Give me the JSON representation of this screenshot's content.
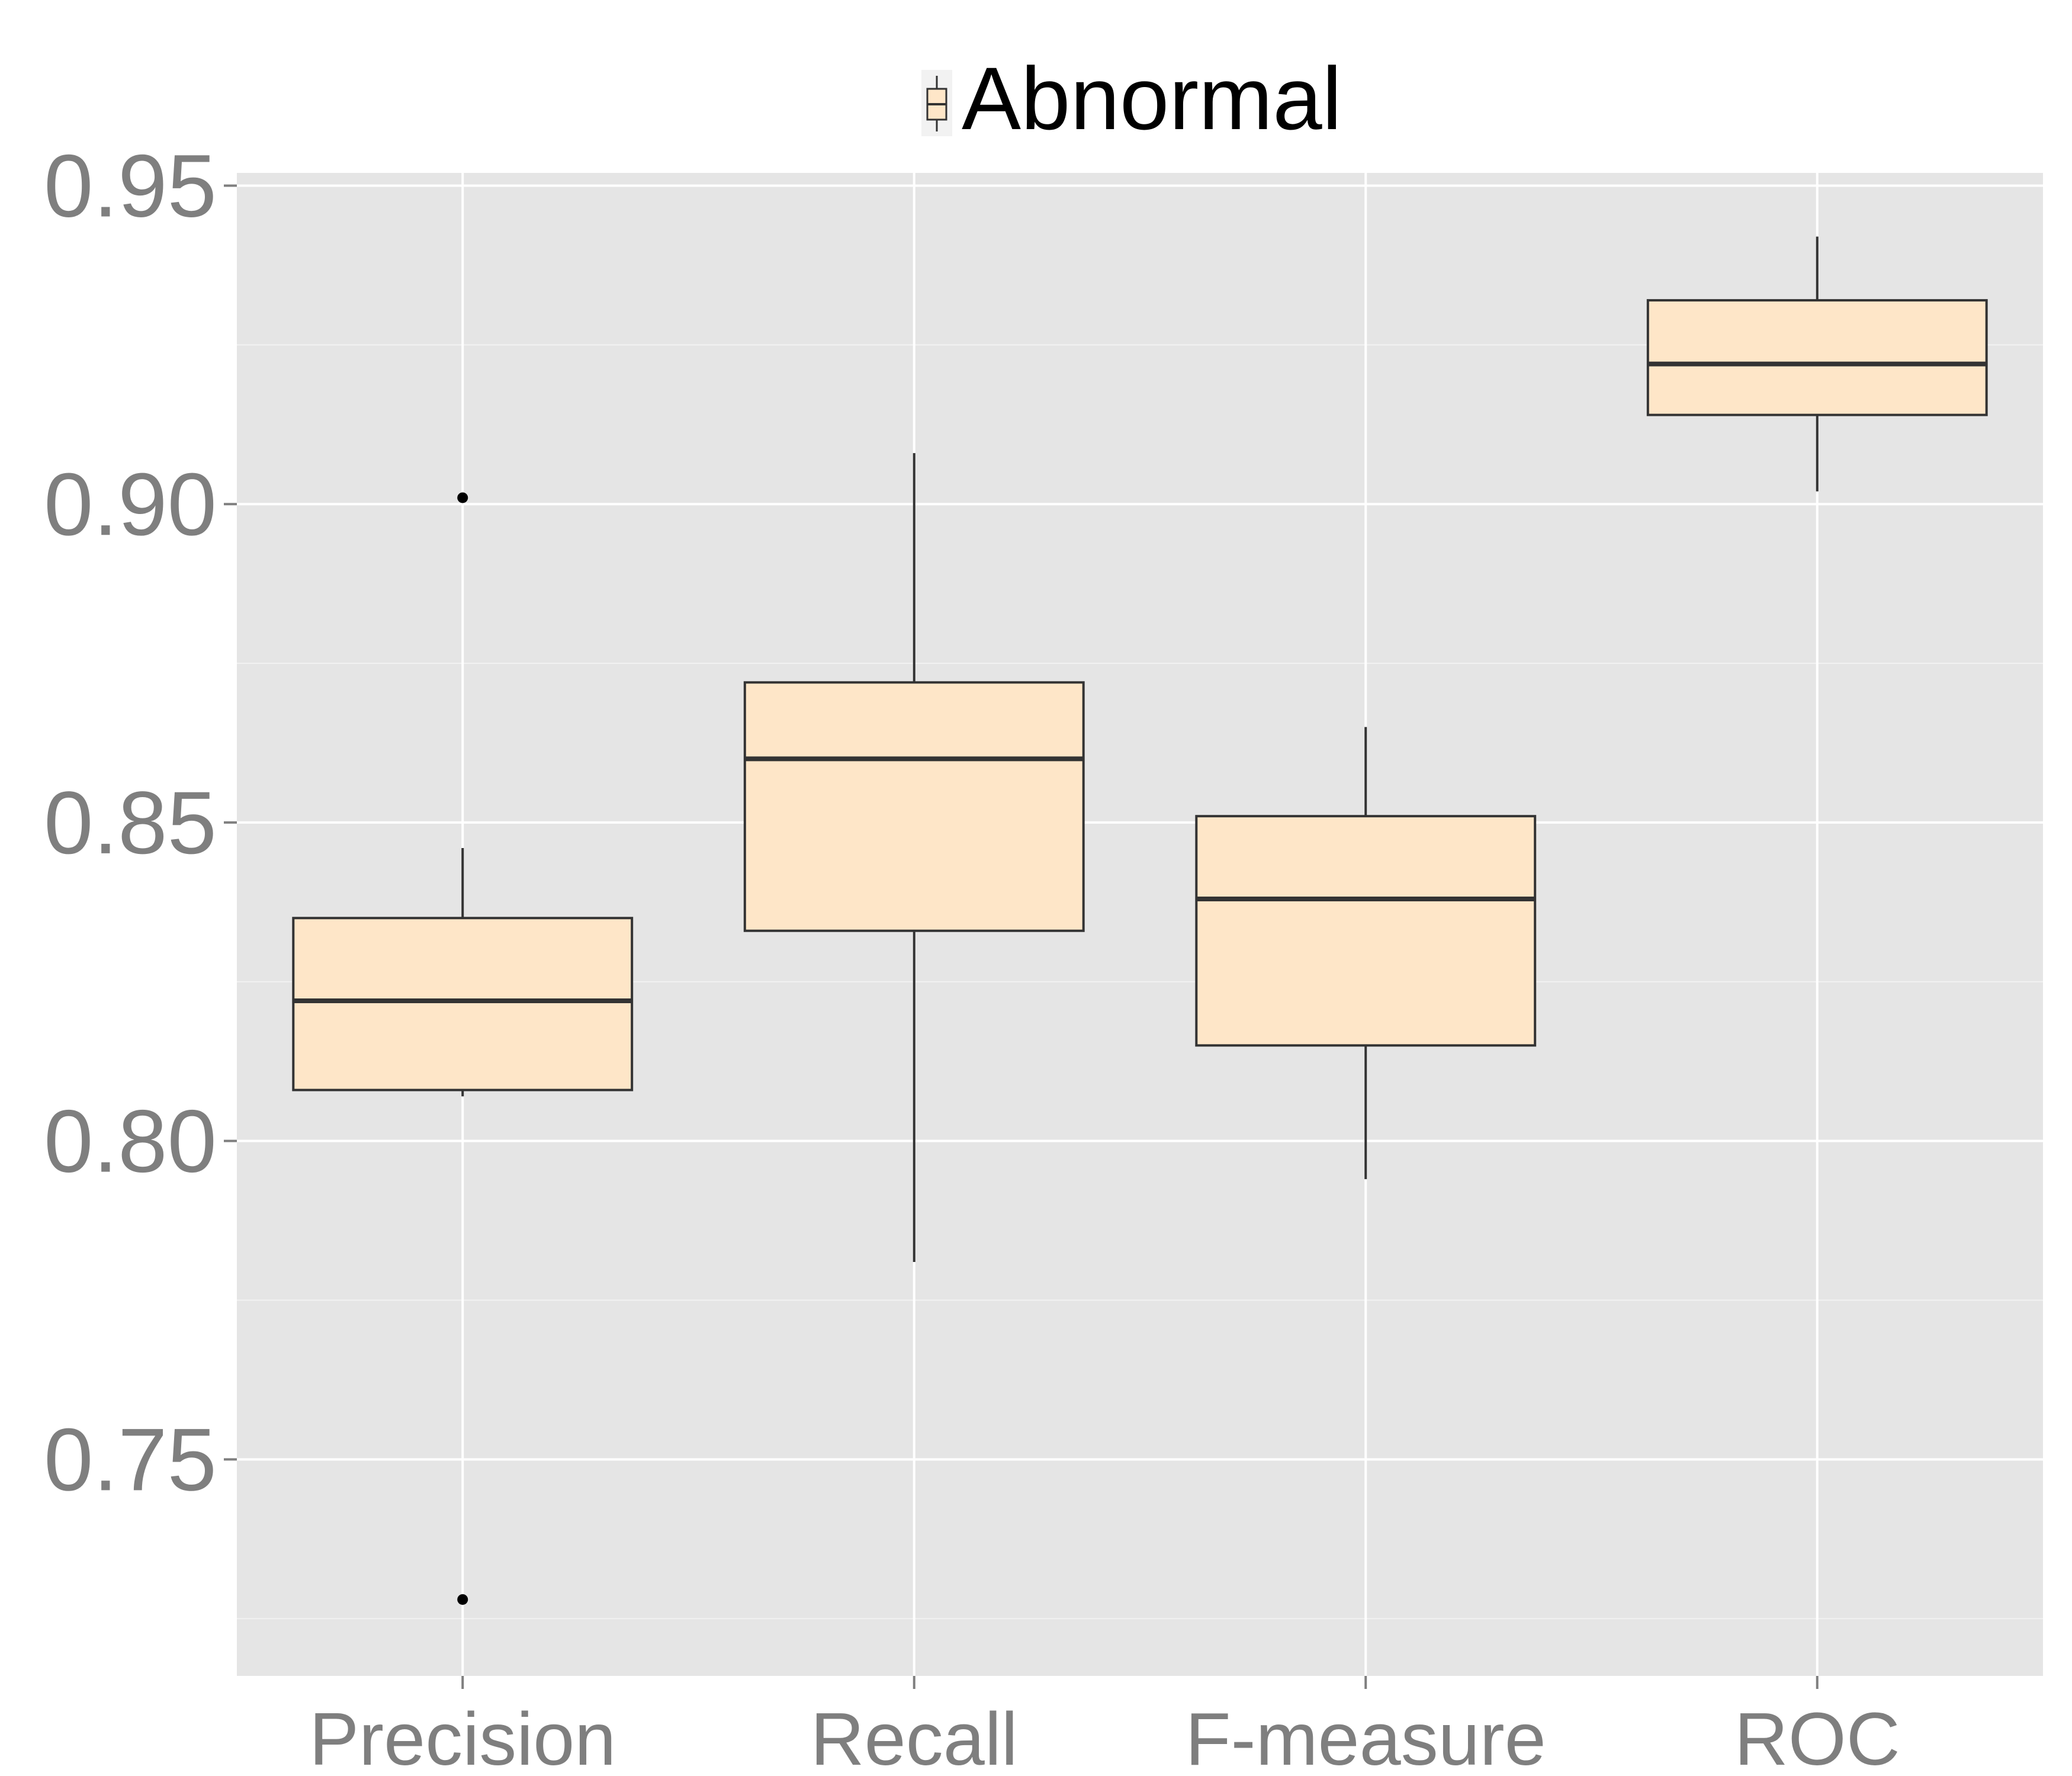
{
  "chart_data": {
    "type": "box",
    "legend": {
      "position": "top",
      "entries": [
        {
          "label": "Abnormal",
          "color": "#FEE6C8"
        }
      ]
    },
    "categories": [
      "Precision",
      "Recall",
      "F-measure",
      "ROC"
    ],
    "y_ticks": [
      "0.75",
      "0.80",
      "0.85",
      "0.90",
      "0.95"
    ],
    "ylim": [
      0.716,
      0.952
    ],
    "grid": true,
    "colors": {
      "panel": "#E5E5E5",
      "grid_major": "#FFFFFF",
      "grid_minor": "#F2F2F2",
      "box_fill": "#FEE6C8",
      "box_line": "#333333",
      "tick_text": "#7F7F7F"
    },
    "series": [
      {
        "name": "Abnormal",
        "boxes": [
          {
            "category": "Precision",
            "whisker_low": 0.807,
            "q1": 0.808,
            "median": 0.822,
            "q3": 0.835,
            "whisker_high": 0.846,
            "outliers": [
              0.901,
              0.728
            ]
          },
          {
            "category": "Recall",
            "whisker_low": 0.781,
            "q1": 0.833,
            "median": 0.86,
            "q3": 0.872,
            "whisker_high": 0.908,
            "outliers": []
          },
          {
            "category": "F-measure",
            "whisker_low": 0.794,
            "q1": 0.815,
            "median": 0.838,
            "q3": 0.851,
            "whisker_high": 0.865,
            "outliers": []
          },
          {
            "category": "ROC",
            "whisker_low": 0.902,
            "q1": 0.914,
            "median": 0.922,
            "q3": 0.932,
            "whisker_high": 0.942,
            "outliers": []
          }
        ]
      }
    ]
  }
}
